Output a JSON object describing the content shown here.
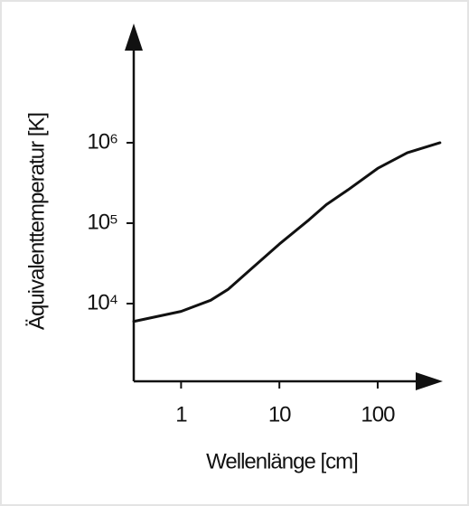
{
  "chart_data": {
    "type": "line",
    "x_label": "Wellenlänge [cm]",
    "y_label": "Äquivalenttemperatur [K]",
    "x": [
      0.33,
      1,
      2,
      3,
      5,
      10,
      20,
      30,
      50,
      100,
      200,
      430
    ],
    "values": [
      6000,
      8000,
      11000,
      15000,
      26000,
      55000,
      110000,
      170000,
      260000,
      480000,
      750000,
      1000000
    ],
    "color": "#111111",
    "xscale": "log",
    "yscale": "log",
    "xlim": [
      0.33,
      500
    ],
    "ylim": [
      1000,
      30000000
    ],
    "xticks": [
      1,
      10,
      100
    ],
    "yticks": [
      {
        "value": 10000,
        "label": "10⁴"
      },
      {
        "value": 100000,
        "label": "10⁵"
      },
      {
        "value": 1000000,
        "label": "10⁶"
      }
    ]
  }
}
